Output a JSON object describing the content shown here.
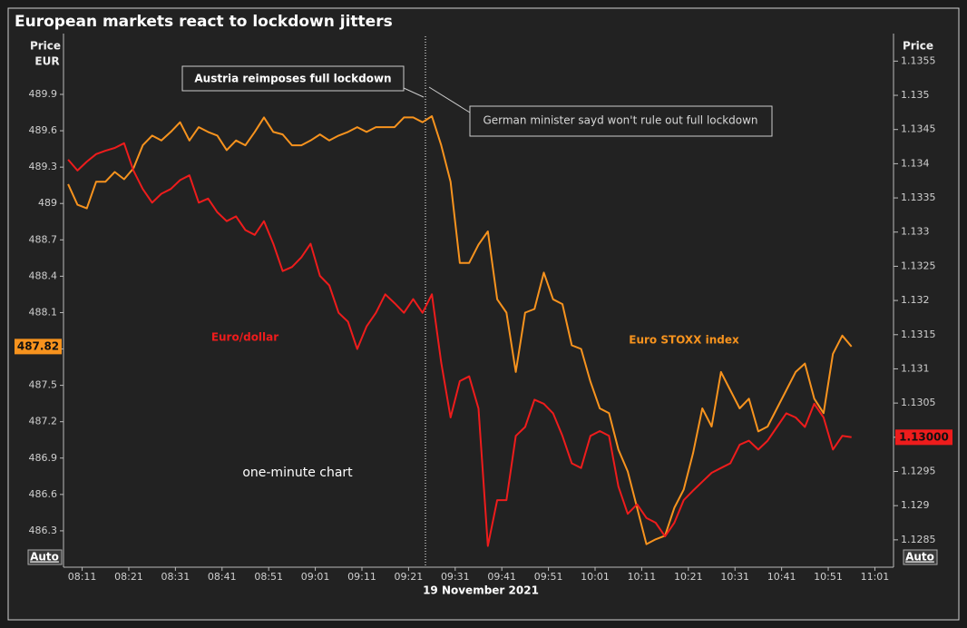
{
  "chart_data": {
    "type": "line",
    "title": "European markets react to lockdown jitters",
    "ylabel": "Price",
    "yunit": "EUR",
    "y2label": "Price",
    "xlabel": "19 November 2021",
    "auto_label": "Auto",
    "annotations": [
      "Austria reimposes full lockdown",
      "German minister sayd won't rule out full lockdown",
      "one-minute chart"
    ],
    "x": [
      "08:08",
      "08:10",
      "08:12",
      "08:14",
      "08:16",
      "08:18",
      "08:20",
      "08:22",
      "08:24",
      "08:26",
      "08:28",
      "08:30",
      "08:32",
      "08:34",
      "08:36",
      "08:38",
      "08:40",
      "08:42",
      "08:44",
      "08:46",
      "08:48",
      "08:50",
      "08:52",
      "08:54",
      "08:56",
      "08:58",
      "09:00",
      "09:02",
      "09:04",
      "09:06",
      "09:08",
      "09:10",
      "09:12",
      "09:14",
      "09:16",
      "09:18",
      "09:20",
      "09:22",
      "09:24",
      "09:26",
      "09:28",
      "09:30",
      "09:32",
      "09:34",
      "09:36",
      "09:38",
      "09:40",
      "09:42",
      "09:44",
      "09:46",
      "09:48",
      "09:50",
      "09:52",
      "09:54",
      "09:56",
      "09:58",
      "10:00",
      "10:02",
      "10:04",
      "10:06",
      "10:08",
      "10:10",
      "10:12",
      "10:14",
      "10:16",
      "10:18",
      "10:20",
      "10:22",
      "10:24",
      "10:26",
      "10:28",
      "10:30",
      "10:32",
      "10:34",
      "10:36",
      "10:38",
      "10:40",
      "10:42",
      "10:44",
      "10:46",
      "10:48",
      "10:50",
      "10:52",
      "10:54",
      "10:56"
    ],
    "series": [
      {
        "name": "Euro STOXX index",
        "color": "#f7931e",
        "last_label": "487.82",
        "values": [
          489.16,
          488.99,
          488.96,
          489.18,
          489.18,
          489.26,
          489.2,
          489.29,
          489.48,
          489.56,
          489.52,
          489.59,
          489.67,
          489.52,
          489.63,
          489.59,
          489.56,
          489.44,
          489.52,
          489.48,
          489.59,
          489.71,
          489.59,
          489.57,
          489.48,
          489.48,
          489.52,
          489.57,
          489.52,
          489.56,
          489.59,
          489.63,
          489.59,
          489.63,
          489.63,
          489.63,
          489.71,
          489.71,
          489.67,
          489.72,
          489.48,
          489.18,
          488.51,
          488.51,
          488.66,
          488.77,
          488.21,
          488.1,
          487.61,
          488.1,
          488.13,
          488.43,
          488.21,
          488.17,
          487.83,
          487.8,
          487.53,
          487.31,
          487.27,
          486.97,
          486.79,
          486.49,
          486.19,
          486.23,
          486.26,
          486.49,
          486.64,
          486.94,
          487.31,
          487.16,
          487.61,
          487.46,
          487.31,
          487.39,
          487.12,
          487.16,
          487.31,
          487.46,
          487.61,
          487.68,
          487.39,
          487.27,
          487.76,
          487.91,
          487.82
        ]
      },
      {
        "name": "Euro/dollar",
        "color": "#ee1c1c",
        "axis": "y2",
        "last_label": "1.13000",
        "values": [
          1.13406,
          1.1339,
          1.13403,
          1.13414,
          1.13419,
          1.13423,
          1.1343,
          1.1339,
          1.13363,
          1.13343,
          1.13356,
          1.13363,
          1.13376,
          1.13383,
          1.13343,
          1.13349,
          1.13329,
          1.13316,
          1.13323,
          1.13303,
          1.13296,
          1.13316,
          1.13283,
          1.13243,
          1.13249,
          1.13263,
          1.13283,
          1.13236,
          1.13222,
          1.13182,
          1.13169,
          1.13129,
          1.13162,
          1.13182,
          1.13209,
          1.13196,
          1.13182,
          1.13202,
          1.13182,
          1.13209,
          1.13109,
          1.13029,
          1.13082,
          1.13089,
          1.13042,
          1.12841,
          1.12908,
          1.12908,
          1.13002,
          1.13015,
          1.13055,
          1.13049,
          1.13035,
          1.13002,
          1.12962,
          1.12955,
          1.13002,
          1.13009,
          1.13002,
          1.12928,
          1.12888,
          1.12902,
          1.12882,
          1.12875,
          1.12855,
          1.12875,
          1.12908,
          1.12922,
          1.12935,
          1.12948,
          1.12955,
          1.12962,
          1.12989,
          1.12995,
          1.12982,
          1.12995,
          1.13015,
          1.13035,
          1.13029,
          1.13015,
          1.13049,
          1.13029,
          1.12982,
          1.13002,
          1.13
        ]
      }
    ],
    "xlim": [
      "08:07",
      "11:05"
    ],
    "xticks": [
      "08:11",
      "08:21",
      "08:31",
      "08:41",
      "08:51",
      "09:01",
      "09:11",
      "09:21",
      "09:31",
      "09:41",
      "09:51",
      "10:01",
      "10:11",
      "10:21",
      "10:31",
      "10:41",
      "10:51",
      "11:01"
    ],
    "ylim": [
      486.0,
      490.4
    ],
    "yticks": [
      486.3,
      486.6,
      486.9,
      487.2,
      487.5,
      487.8,
      488.1,
      488.4,
      488.7,
      489,
      489.3,
      489.6,
      489.9
    ],
    "y2lim": [
      1.1281,
      1.1359
    ],
    "y2ticks": [
      1.1285,
      1.129,
      1.1295,
      1.13,
      1.1305,
      1.131,
      1.1315,
      1.132,
      1.1325,
      1.133,
      1.1335,
      1.134,
      1.1345,
      1.135,
      1.1355
    ]
  }
}
